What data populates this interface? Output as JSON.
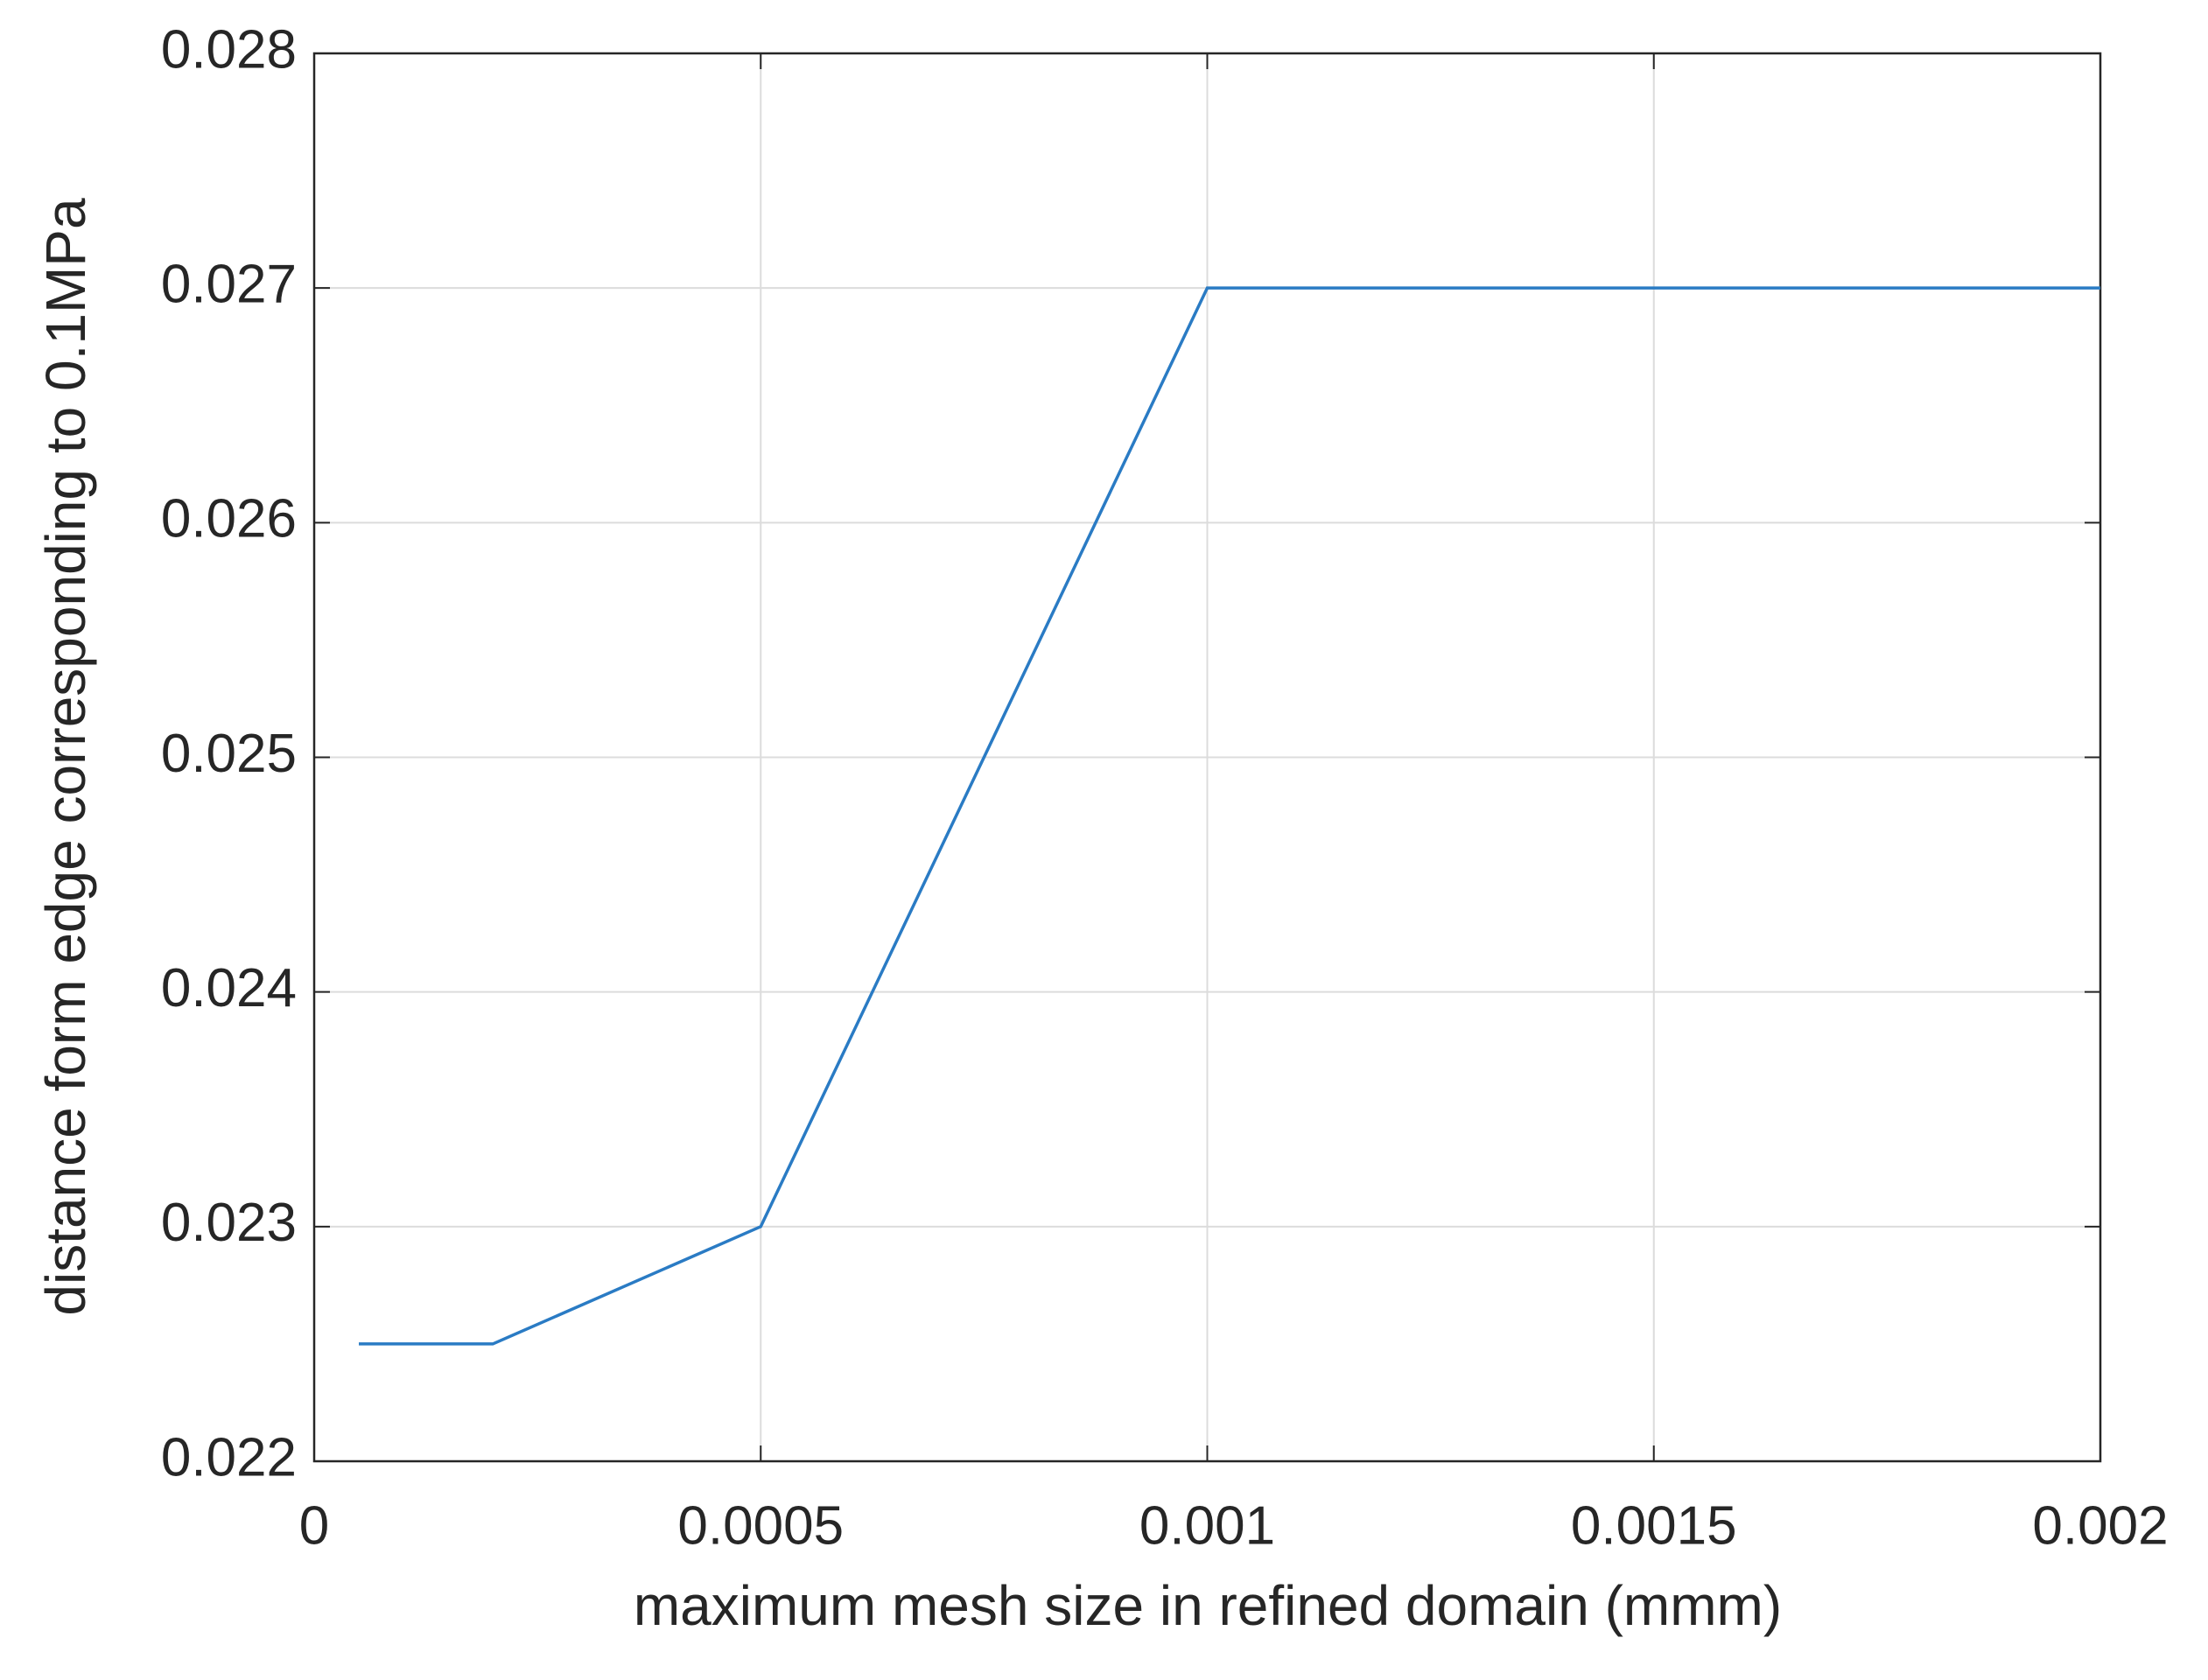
{
  "chart_data": {
    "type": "line",
    "x_label": "maximum mesh size in refined domain (mmm)",
    "y_label": "distance form edge corresponding to 0.1MPa",
    "x": [
      5e-05,
      0.0002,
      0.0005,
      0.001,
      0.002
    ],
    "series": [
      {
        "color": "#2a7bc4",
        "values": [
          0.0225,
          0.0225,
          0.023,
          0.027,
          0.027
        ]
      }
    ],
    "xlim": [
      0,
      0.002
    ],
    "xticks": [
      0,
      0.0005,
      0.001,
      0.0015,
      0.002
    ],
    "ylim": [
      0.022,
      0.028
    ],
    "yticks": [
      0.022,
      0.023,
      0.024,
      0.025,
      0.026,
      0.027,
      0.028
    ],
    "grid": true
  }
}
